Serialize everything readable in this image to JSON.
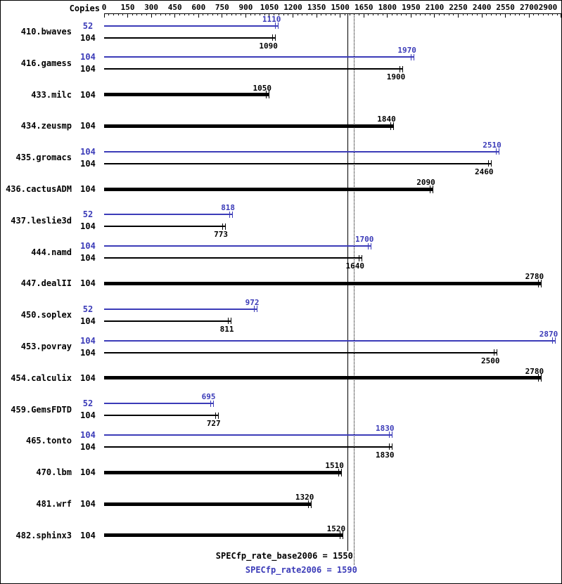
{
  "header": {
    "copies_label": "Copies"
  },
  "chart_data": {
    "type": "bar",
    "orientation": "horizontal",
    "title": "",
    "xlabel": "",
    "ylabel": "Copies",
    "xlim": [
      0,
      2900
    ],
    "grid": false,
    "axis_ticks": [
      0,
      150,
      300,
      450,
      600,
      750,
      900,
      1050,
      1200,
      1350,
      1500,
      1650,
      1800,
      1950,
      2100,
      2250,
      2400,
      2550,
      2700,
      2900
    ],
    "colors": {
      "peak": "#3b3bb8",
      "base": "#000000"
    },
    "benchmarks": [
      {
        "name": "410.bwaves",
        "rows": [
          {
            "kind": "peak",
            "copies": "52",
            "value": 1110
          },
          {
            "kind": "base",
            "copies": "104",
            "value": 1090
          }
        ]
      },
      {
        "name": "416.gamess",
        "rows": [
          {
            "kind": "peak",
            "copies": "104",
            "value": 1970
          },
          {
            "kind": "base",
            "copies": "104",
            "value": 1900
          }
        ]
      },
      {
        "name": "433.milc",
        "rows": [
          {
            "kind": "base-only",
            "copies": "104",
            "value": 1050
          }
        ]
      },
      {
        "name": "434.zeusmp",
        "rows": [
          {
            "kind": "base-only",
            "copies": "104",
            "value": 1840
          }
        ]
      },
      {
        "name": "435.gromacs",
        "rows": [
          {
            "kind": "peak",
            "copies": "104",
            "value": 2510
          },
          {
            "kind": "base",
            "copies": "104",
            "value": 2460
          }
        ]
      },
      {
        "name": "436.cactusADM",
        "rows": [
          {
            "kind": "base-only",
            "copies": "104",
            "value": 2090
          }
        ]
      },
      {
        "name": "437.leslie3d",
        "rows": [
          {
            "kind": "peak",
            "copies": "52",
            "value": 818
          },
          {
            "kind": "base",
            "copies": "104",
            "value": 773
          }
        ]
      },
      {
        "name": "444.namd",
        "rows": [
          {
            "kind": "peak",
            "copies": "104",
            "value": 1700
          },
          {
            "kind": "base",
            "copies": "104",
            "value": 1640
          }
        ]
      },
      {
        "name": "447.dealII",
        "rows": [
          {
            "kind": "base-only",
            "copies": "104",
            "value": 2780
          }
        ]
      },
      {
        "name": "450.soplex",
        "rows": [
          {
            "kind": "peak",
            "copies": "52",
            "value": 972
          },
          {
            "kind": "base",
            "copies": "104",
            "value": 811
          }
        ]
      },
      {
        "name": "453.povray",
        "rows": [
          {
            "kind": "peak",
            "copies": "104",
            "value": 2870
          },
          {
            "kind": "base",
            "copies": "104",
            "value": 2500
          }
        ]
      },
      {
        "name": "454.calculix",
        "rows": [
          {
            "kind": "base-only",
            "copies": "104",
            "value": 2780
          }
        ]
      },
      {
        "name": "459.GemsFDTD",
        "rows": [
          {
            "kind": "peak",
            "copies": "52",
            "value": 695
          },
          {
            "kind": "base",
            "copies": "104",
            "value": 727
          }
        ]
      },
      {
        "name": "465.tonto",
        "rows": [
          {
            "kind": "peak",
            "copies": "104",
            "value": 1830
          },
          {
            "kind": "base",
            "copies": "104",
            "value": 1830
          }
        ]
      },
      {
        "name": "470.lbm",
        "rows": [
          {
            "kind": "base-only",
            "copies": "104",
            "value": 1510
          }
        ]
      },
      {
        "name": "481.wrf",
        "rows": [
          {
            "kind": "base-only",
            "copies": "104",
            "value": 1320
          }
        ]
      },
      {
        "name": "482.sphinx3",
        "rows": [
          {
            "kind": "base-only",
            "copies": "104",
            "value": 1520
          }
        ]
      }
    ],
    "medians": {
      "base": {
        "label": "SPECfp_rate_base2006 = 1550",
        "value": 1550
      },
      "peak": {
        "label": "SPECfp_rate2006 = 1590",
        "value": 1590
      }
    }
  }
}
